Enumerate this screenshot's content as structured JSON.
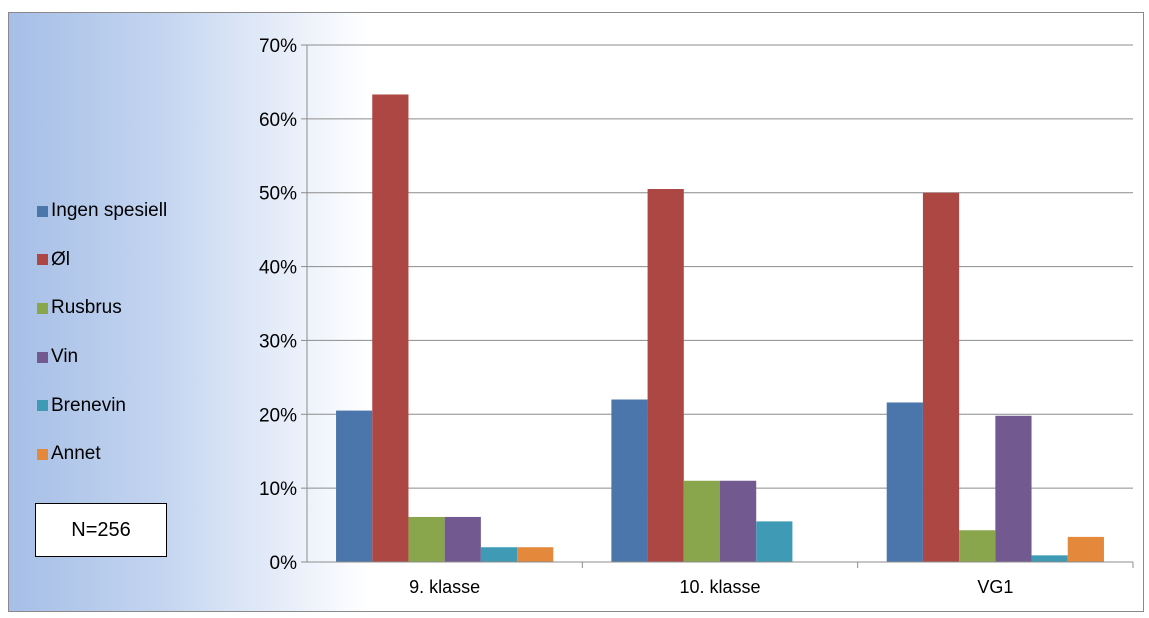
{
  "chart_data": {
    "type": "bar",
    "categories": [
      "9. klasse",
      "10. klasse",
      "VG1"
    ],
    "series": [
      {
        "name": "Ingen spesiell",
        "color": "#4a76ac",
        "values": [
          20.5,
          22.0,
          21.6
        ]
      },
      {
        "name": "Øl",
        "color": "#ad4744",
        "values": [
          63.3,
          50.5,
          50.0
        ]
      },
      {
        "name": "Rusbrus",
        "color": "#8aa64d",
        "values": [
          6.1,
          11.0,
          4.3
        ]
      },
      {
        "name": "Vin",
        "color": "#725a91",
        "values": [
          6.1,
          11.0,
          19.8
        ]
      },
      {
        "name": "Brenevin",
        "color": "#3f9bb5",
        "values": [
          2.0,
          5.5,
          0.9
        ]
      },
      {
        "name": "Annet",
        "color": "#e4883b",
        "values": [
          2.0,
          0.0,
          3.4
        ]
      }
    ],
    "ylim": [
      0,
      70
    ],
    "yticks": [
      "0%",
      "10%",
      "20%",
      "30%",
      "40%",
      "50%",
      "60%",
      "70%"
    ],
    "grid": true,
    "legend": "left",
    "annotation": "N=256"
  }
}
